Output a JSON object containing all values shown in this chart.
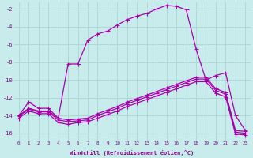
{
  "xlabel": "Windchill (Refroidissement éolien,°C)",
  "background_color": "#c8ecec",
  "grid_color": "#aad4d4",
  "line_color": "#aa00aa",
  "figsize": [
    3.2,
    2.0
  ],
  "dpi": 100,
  "xlim": [
    -0.5,
    23.5
  ],
  "ylim": [
    -16.8,
    -1.3
  ],
  "yticks": [
    -2,
    -4,
    -6,
    -8,
    -10,
    -12,
    -14,
    -16
  ],
  "xticks": [
    0,
    1,
    2,
    3,
    4,
    5,
    6,
    7,
    8,
    9,
    10,
    11,
    12,
    13,
    14,
    15,
    16,
    17,
    18,
    19,
    20,
    21,
    22,
    23
  ],
  "line1_x": [
    0,
    1,
    2,
    3,
    4,
    5,
    6,
    7,
    8,
    9,
    10,
    11,
    12,
    13,
    14,
    15,
    16,
    17,
    18,
    19,
    20,
    21,
    22,
    23
  ],
  "line1_y": [
    -14.0,
    -12.5,
    -13.2,
    -13.2,
    -14.3,
    -8.2,
    -8.2,
    -5.5,
    -4.8,
    -4.5,
    -3.8,
    -3.2,
    -2.8,
    -2.5,
    -2.0,
    -1.6,
    -1.7,
    -2.1,
    -6.5,
    -10.0,
    -9.5,
    -9.2,
    -14.0,
    -15.7
  ],
  "line2_x": [
    0,
    1,
    2,
    3,
    4,
    5,
    6,
    7,
    8,
    9,
    10,
    11,
    12,
    13,
    14,
    15,
    16,
    17,
    18,
    19,
    20,
    21,
    22,
    23
  ],
  "line2_y": [
    -14.0,
    -13.2,
    -13.5,
    -13.5,
    -14.3,
    -14.5,
    -14.4,
    -14.3,
    -13.8,
    -13.4,
    -13.0,
    -12.5,
    -12.1,
    -11.7,
    -11.3,
    -10.9,
    -10.5,
    -10.1,
    -9.7,
    -9.7,
    -11.0,
    -11.4,
    -15.7,
    -15.8
  ],
  "line3_x": [
    0,
    1,
    2,
    3,
    4,
    5,
    6,
    7,
    8,
    9,
    10,
    11,
    12,
    13,
    14,
    15,
    16,
    17,
    18,
    19,
    20,
    21,
    22,
    23
  ],
  "line3_y": [
    -14.1,
    -13.3,
    -13.6,
    -13.6,
    -14.5,
    -14.7,
    -14.6,
    -14.5,
    -14.0,
    -13.6,
    -13.2,
    -12.7,
    -12.3,
    -11.9,
    -11.5,
    -11.1,
    -10.7,
    -10.3,
    -9.9,
    -9.9,
    -11.2,
    -11.6,
    -15.9,
    -16.0
  ],
  "line4_x": [
    0,
    1,
    2,
    3,
    4,
    5,
    6,
    7,
    8,
    9,
    10,
    11,
    12,
    13,
    14,
    15,
    16,
    17,
    18,
    19,
    20,
    21,
    22,
    23
  ],
  "line4_y": [
    -14.3,
    -13.5,
    -13.8,
    -13.8,
    -14.8,
    -15.0,
    -14.8,
    -14.7,
    -14.3,
    -13.9,
    -13.5,
    -13.0,
    -12.6,
    -12.2,
    -11.8,
    -11.4,
    -11.0,
    -10.6,
    -10.2,
    -10.2,
    -11.5,
    -11.9,
    -16.1,
    -16.2
  ]
}
